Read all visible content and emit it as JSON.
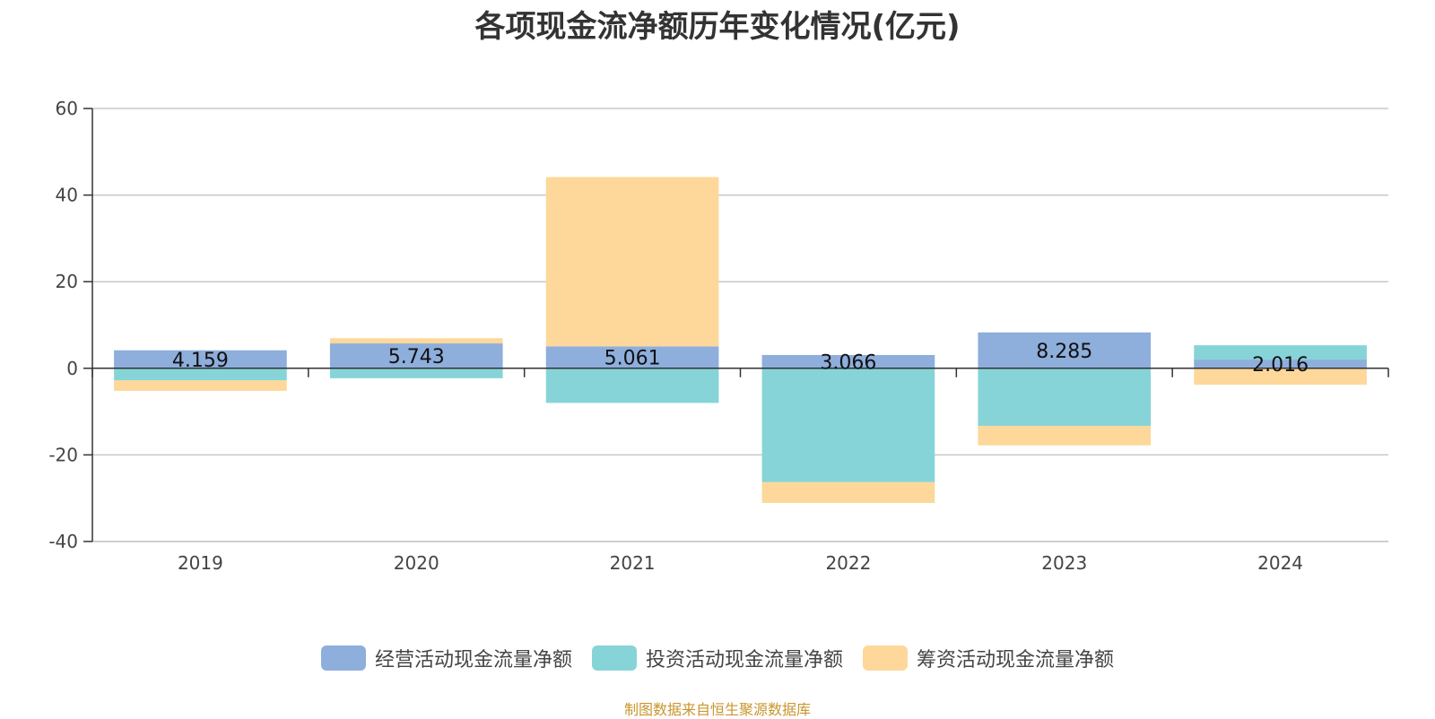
{
  "title": "各项现金流净额历年变化情况(亿元)",
  "source_note": "制图数据来自恒生聚源数据库",
  "colors": {
    "operating": "#8eaedc",
    "investing": "#86d4d8",
    "financing": "#fdd89a",
    "source_note": "#c8962e"
  },
  "chart_data": {
    "type": "bar",
    "stacked": true,
    "title": "各项现金流净额历年变化情况(亿元)",
    "categories": [
      "2019",
      "2020",
      "2021",
      "2022",
      "2023",
      "2024"
    ],
    "ylim": [
      -40,
      60
    ],
    "yticks": [
      60,
      40,
      20,
      0,
      -20,
      -40
    ],
    "grid": true,
    "legend_position": "bottom",
    "series": [
      {
        "name": "经营活动现金流量净额",
        "color": "#8eaedc",
        "values": [
          4.159,
          5.743,
          5.061,
          3.066,
          8.285,
          2.016
        ]
      },
      {
        "name": "投资活动现金流量净额",
        "color": "#86d4d8",
        "values": [
          -2.8,
          -2.3,
          -8.0,
          -26.3,
          -13.3,
          3.3
        ]
      },
      {
        "name": "筹资活动现金流量净额",
        "color": "#fdd89a",
        "values": [
          -2.4,
          1.2,
          39.1,
          -4.8,
          -4.5,
          -3.8
        ]
      }
    ],
    "data_labels": [
      "4.159",
      "5.743",
      "5.061",
      "3.066",
      "8.285",
      "2.016"
    ]
  }
}
